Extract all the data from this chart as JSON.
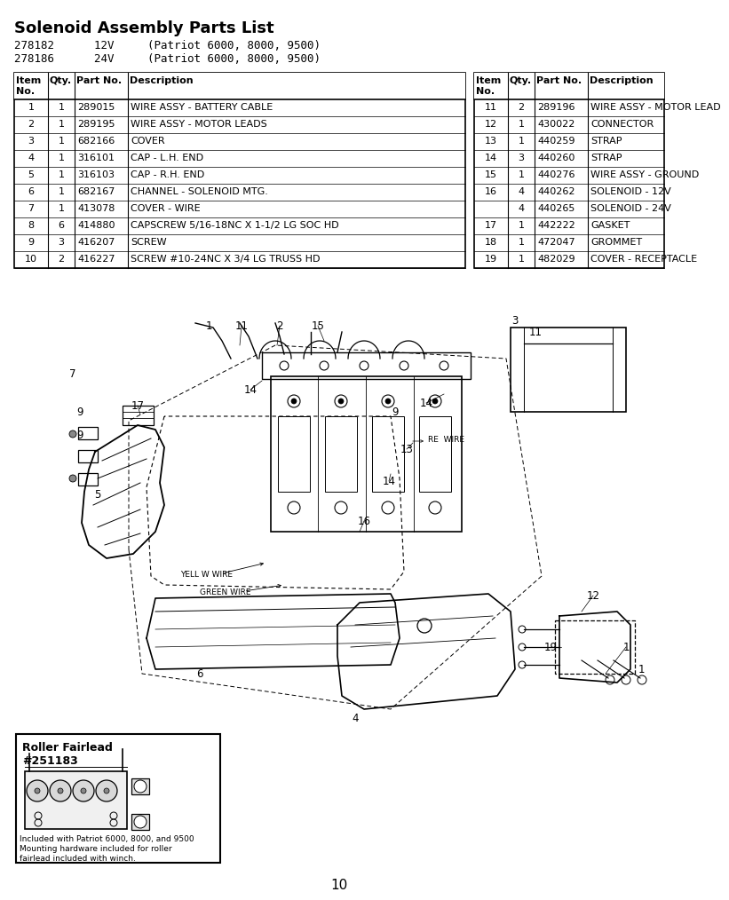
{
  "title": "Solenoid Assembly Parts List",
  "sub1": "278182      12V     (Patriot 6000, 8000, 9500)",
  "sub2": "278186      24V     (Patriot 6000, 8000, 9500)",
  "left_table_rows": [
    [
      "1",
      "1",
      "289015",
      "WIRE ASSY - BATTERY CABLE"
    ],
    [
      "2",
      "1",
      "289195",
      "WIRE ASSY - MOTOR LEADS"
    ],
    [
      "3",
      "1",
      "682166",
      "COVER"
    ],
    [
      "4",
      "1",
      "316101",
      "CAP - L.H. END"
    ],
    [
      "5",
      "1",
      "316103",
      "CAP - R.H. END"
    ],
    [
      "6",
      "1",
      "682167",
      "CHANNEL - SOLENOID MTG."
    ],
    [
      "7",
      "1",
      "413078",
      "COVER - WIRE"
    ],
    [
      "8",
      "6",
      "414880",
      "CAPSCREW 5/16-18NC X 1-1/2 LG SOC HD"
    ],
    [
      "9",
      "3",
      "416207",
      "SCREW"
    ],
    [
      "10",
      "2",
      "416227",
      "SCREW #10-24NC X 3/4 LG TRUSS HD"
    ]
  ],
  "right_table_rows": [
    [
      "11",
      "2",
      "289196",
      "WIRE ASSY - MOTOR LEAD"
    ],
    [
      "12",
      "1",
      "430022",
      "CONNECTOR"
    ],
    [
      "13",
      "1",
      "440259",
      "STRAP"
    ],
    [
      "14",
      "3",
      "440260",
      "STRAP"
    ],
    [
      "15",
      "1",
      "440276",
      "WIRE ASSY - GROUND"
    ],
    [
      "16",
      "4",
      "440262",
      "SOLENOID - 12V"
    ],
    [
      "",
      "4",
      "440265",
      "SOLENOID - 24V"
    ],
    [
      "17",
      "1",
      "442222",
      "GASKET"
    ],
    [
      "18",
      "1",
      "472047",
      "GROMMET"
    ],
    [
      "19",
      "1",
      "482029",
      "COVER - RECEPTACLE"
    ]
  ],
  "footer": "10",
  "rf_title": "Roller Fairlead\n#251183",
  "rf_note1": "Included with Patriot 6000, 8000, and 9500",
  "rf_note2": "Mounting hardware included for roller",
  "rf_note3": "fairlead included with winch.",
  "bg": "#ffffff",
  "black": "#000000",
  "gray": "#c8c8c8",
  "ltgray": "#e8e8e8"
}
